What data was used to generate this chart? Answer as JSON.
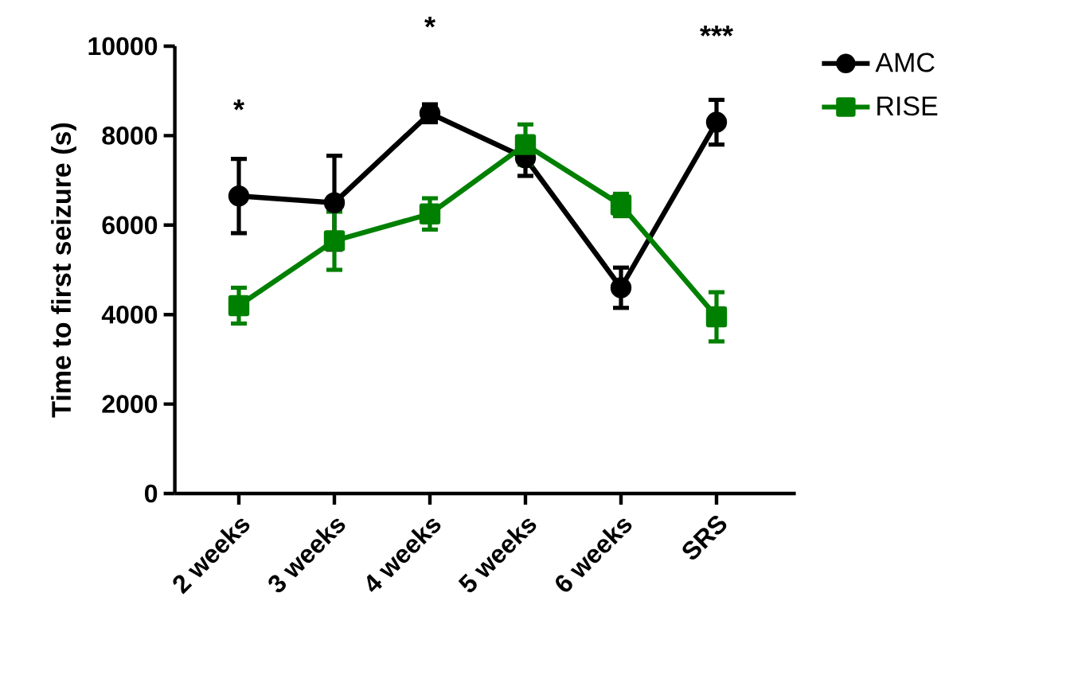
{
  "chart_data": {
    "type": "line",
    "ylabel": "Time to first seizure (s)",
    "categories": [
      "2 weeks",
      "3 weeks",
      "4 weeks",
      "5 weeks",
      "6 weeks",
      "SRS"
    ],
    "series": [
      {
        "name": "AMC",
        "color": "#000000",
        "marker": "circle",
        "values": [
          6650,
          6500,
          8500,
          7500,
          4600,
          8300
        ],
        "errors": [
          830,
          1050,
          200,
          400,
          450,
          500
        ]
      },
      {
        "name": "RISE",
        "color": "#008000",
        "marker": "square",
        "values": [
          4200,
          5650,
          6250,
          7800,
          6450,
          3950
        ],
        "errors": [
          400,
          650,
          350,
          450,
          250,
          550
        ]
      }
    ],
    "ylim": [
      0,
      10000
    ],
    "yticks": [
      0,
      2000,
      4000,
      6000,
      8000,
      10000
    ],
    "grid": false,
    "legend": "top right",
    "annotations": [
      {
        "text": "*",
        "x": "2 weeks",
        "y": 6650
      },
      {
        "text": "*",
        "x": "4 weeks",
        "y": 8500
      },
      {
        "text": "***",
        "x": "SRS",
        "y": 8300
      }
    ]
  }
}
